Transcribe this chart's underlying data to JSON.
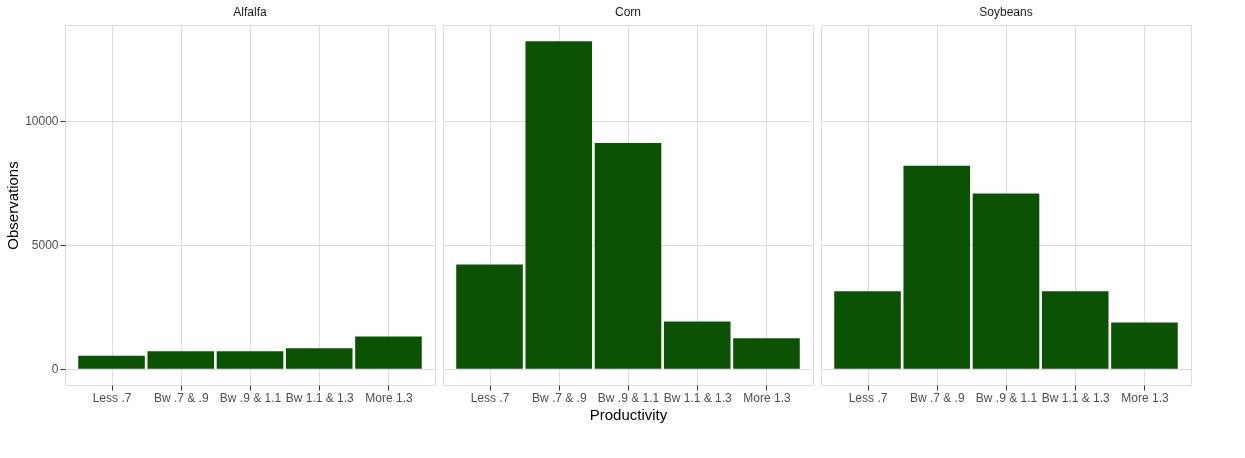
{
  "chart_data": [
    {
      "type": "bar",
      "title": "Alfalfa",
      "ylabel": "Observations",
      "categories": [
        "Less .7",
        "Bw .7 & .9",
        "Bw .9 & 1.1",
        "Bw 1.1 & 1.3",
        "More 1.3"
      ],
      "values": [
        520,
        700,
        700,
        820,
        1300
      ],
      "color": "#0b5204",
      "ylim": [
        -660,
        13860
      ],
      "yticks": [
        0,
        5000,
        10000
      ],
      "grid": true
    },
    {
      "type": "bar",
      "title": "Corn",
      "xlabel": "Productivity",
      "categories": [
        "Less .7",
        "Bw .7 & .9",
        "Bw .9 & 1.1",
        "Bw 1.1 & 1.3",
        "More 1.3"
      ],
      "values": [
        4200,
        13200,
        9100,
        1900,
        1230
      ],
      "color": "#0b5204",
      "ylim": [
        -660,
        13860
      ],
      "yticks": [
        0,
        5000,
        10000
      ],
      "grid": true,
      "tick_labels": "x"
    },
    {
      "type": "bar",
      "title": "Soybeans",
      "categories": [
        "Less .7",
        "Bw .7 & .9",
        "Bw .9 & 1.1",
        "Bw 1.1 & 1.3",
        "More 1.3"
      ],
      "values": [
        3120,
        8180,
        7060,
        3120,
        1860
      ],
      "color": "#0b5204",
      "ylim": [
        -660,
        13860
      ],
      "yticks": [
        0,
        5000,
        10000
      ],
      "grid": true,
      "tick_labels": "x"
    }
  ]
}
